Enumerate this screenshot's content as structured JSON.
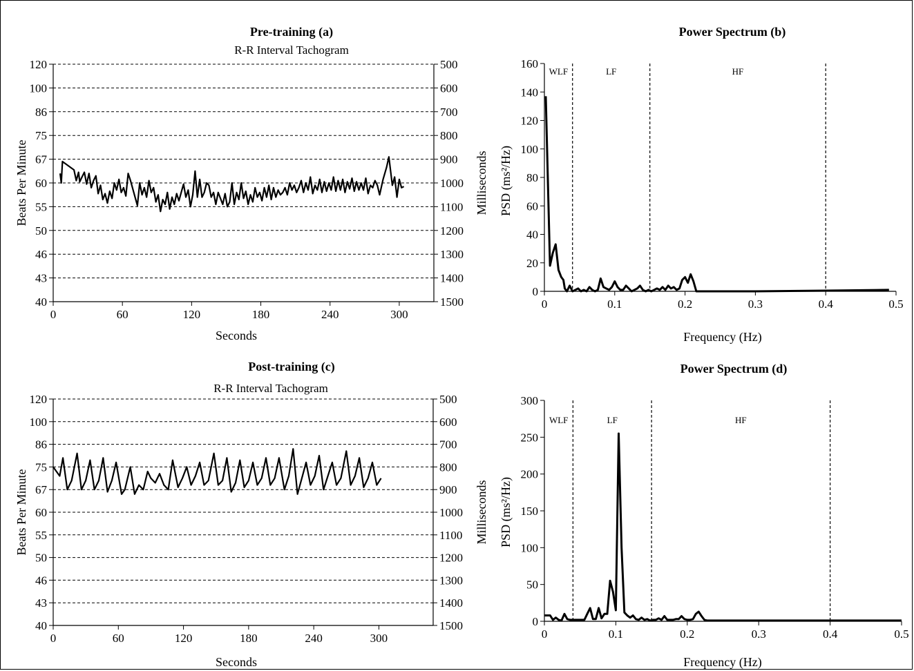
{
  "chart_data": [
    {
      "id": "a",
      "type": "line",
      "title": "Pre-training (a)",
      "subtitle": "R-R Interval Tachogram",
      "xlabel": "Seconds",
      "ylabel": "Beats Per Minute",
      "y2label": "Milliseconds",
      "x_ticks": [
        "0",
        "60",
        "120",
        "180",
        "240",
        "300"
      ],
      "y_ticks": [
        "120",
        "100",
        "86",
        "75",
        "67",
        "60",
        "55",
        "50",
        "46",
        "43",
        "40"
      ],
      "y2_ticks": [
        "500",
        "600",
        "700",
        "800",
        "900",
        "1000",
        "1100",
        "1200",
        "1300",
        "1400",
        "1500"
      ],
      "xlim": [
        0,
        330
      ],
      "ylim_ms": [
        500,
        1500
      ],
      "grid": "horizontal-dashed",
      "series": [
        {
          "x_seconds": [
            6,
            7,
            8,
            18,
            20,
            22,
            23,
            25,
            27,
            29,
            31,
            33,
            35,
            37,
            39,
            41,
            43,
            45,
            47,
            49,
            51,
            53,
            55,
            57,
            59,
            61,
            63,
            65,
            67,
            69,
            71,
            73,
            75,
            77,
            79,
            81,
            83,
            85,
            87,
            89,
            91,
            93,
            95,
            97,
            99,
            101,
            103,
            105,
            107,
            109,
            111,
            113,
            115,
            117,
            119,
            121,
            123,
            125,
            127,
            129,
            131,
            133,
            135,
            137,
            139,
            141,
            143,
            145,
            147,
            149,
            151,
            153,
            155,
            157,
            159,
            161,
            163,
            165,
            167,
            169,
            171,
            173,
            175,
            177,
            179,
            181,
            183,
            185,
            187,
            189,
            191,
            193,
            195,
            197,
            199,
            201,
            203,
            205,
            207,
            209,
            211,
            213,
            215,
            217,
            219,
            221,
            223,
            225,
            227,
            229,
            231,
            233,
            235,
            237,
            239,
            241,
            243,
            245,
            247,
            249,
            251,
            253,
            255,
            257,
            259,
            261,
            263,
            265,
            267,
            269,
            271,
            273,
            275,
            277,
            279,
            281,
            283,
            286,
            289,
            291,
            294,
            296,
            298,
            300,
            302,
            304
          ],
          "ms": [
            960,
            1000,
            910,
            945,
            990,
            955,
            995,
            975,
            955,
            1005,
            960,
            1020,
            990,
            970,
            1045,
            1010,
            1070,
            1045,
            1085,
            1035,
            1065,
            1000,
            1030,
            985,
            1040,
            1020,
            1055,
            960,
            990,
            1025,
            1060,
            1095,
            1000,
            1050,
            1020,
            1060,
            990,
            1040,
            1020,
            1080,
            1050,
            1120,
            1070,
            1090,
            1040,
            1110,
            1060,
            1090,
            1045,
            1075,
            1040,
            1005,
            1060,
            1030,
            1100,
            1050,
            950,
            1060,
            985,
            1060,
            1040,
            1000,
            1010,
            1060,
            1040,
            1090,
            1040,
            1065,
            1090,
            1045,
            1100,
            1080,
            1000,
            1090,
            1040,
            1070,
            1000,
            1065,
            1035,
            1090,
            1050,
            1080,
            1020,
            1060,
            1040,
            1075,
            1020,
            1060,
            1010,
            1070,
            1020,
            1060,
            1030,
            1050,
            1040,
            1020,
            1050,
            1000,
            1030,
            1010,
            1040,
            1020,
            990,
            1040,
            1000,
            1030,
            975,
            1045,
            1010,
            1030,
            985,
            1040,
            995,
            1035,
            1000,
            1030,
            975,
            1035,
            990,
            1030,
            985,
            1040,
            995,
            1025,
            980,
            1035,
            995,
            1030,
            1000,
            1030,
            980,
            1045,
            1010,
            1020,
            990,
            1010,
            1050,
            985,
            935,
            890,
            1010,
            975,
            1060,
            985,
            1020,
            1015
          ]
        }
      ]
    },
    {
      "id": "b",
      "type": "line",
      "title": "Power Spectrum (b)",
      "xlabel": "Frequency (Hz)",
      "ylabel": "PSD (ms²/Hz)",
      "x_ticks": [
        "0",
        "0.1",
        "0.2",
        "0.3",
        "0.4",
        "0.5"
      ],
      "y_ticks": [
        "0",
        "20",
        "40",
        "60",
        "80",
        "100",
        "120",
        "140",
        "160"
      ],
      "xlim": [
        0,
        0.5
      ],
      "ylim": [
        0,
        160
      ],
      "bands": [
        "WLF",
        "LF",
        "HF"
      ],
      "band_limits_hz": [
        0.04,
        0.15,
        0.4
      ],
      "series": [
        {
          "x": [
            0.002,
            0.008,
            0.012,
            0.016,
            0.02,
            0.024,
            0.027,
            0.029,
            0.032,
            0.036,
            0.04,
            0.044,
            0.048,
            0.052,
            0.056,
            0.06,
            0.064,
            0.068,
            0.072,
            0.076,
            0.08,
            0.084,
            0.088,
            0.092,
            0.096,
            0.1,
            0.104,
            0.108,
            0.112,
            0.116,
            0.12,
            0.124,
            0.128,
            0.132,
            0.136,
            0.14,
            0.144,
            0.148,
            0.152,
            0.156,
            0.16,
            0.164,
            0.168,
            0.172,
            0.176,
            0.18,
            0.184,
            0.188,
            0.192,
            0.196,
            0.2,
            0.204,
            0.208,
            0.212,
            0.216,
            0.3,
            0.4,
            0.49
          ],
          "y": [
            137,
            18,
            27,
            33,
            15,
            10,
            8,
            2,
            0,
            4,
            0,
            1,
            2,
            0,
            1,
            0,
            3,
            1,
            0,
            1,
            9,
            3,
            2,
            1,
            3,
            7,
            3,
            1,
            1,
            4,
            2,
            0,
            1,
            2,
            4,
            1,
            0,
            1,
            0,
            1,
            2,
            1,
            3,
            1,
            4,
            2,
            3,
            1,
            2,
            8,
            10,
            6,
            12,
            7,
            0,
            0,
            0.5,
            1
          ]
        }
      ]
    },
    {
      "id": "c",
      "type": "line",
      "title": "Post-training (c)",
      "subtitle": "R-R Interval Tachogram",
      "xlabel": "Seconds",
      "ylabel": "Beats Per Minute",
      "y2label": "Milliseconds",
      "x_ticks": [
        "0",
        "60",
        "120",
        "180",
        "240",
        "300"
      ],
      "y_ticks": [
        "120",
        "100",
        "86",
        "75",
        "67",
        "60",
        "55",
        "50",
        "46",
        "43",
        "40"
      ],
      "y2_ticks": [
        "500",
        "600",
        "700",
        "800",
        "900",
        "1000",
        "1100",
        "1200",
        "1300",
        "1400",
        "1500"
      ],
      "xlim": [
        0,
        350
      ],
      "ylim_ms": [
        500,
        1500
      ],
      "grid": "horizontal-dashed",
      "series": [
        {
          "x_seconds": [
            0,
            3,
            6,
            9,
            13,
            17,
            22,
            26,
            30,
            34,
            38,
            42,
            46,
            50,
            54,
            58,
            63,
            66,
            71,
            75,
            79,
            83,
            87,
            90,
            94,
            98,
            102,
            106,
            110,
            115,
            119,
            123,
            127,
            131,
            135,
            139,
            143,
            148,
            152,
            156,
            160,
            164,
            168,
            172,
            176,
            180,
            184,
            188,
            192,
            196,
            200,
            204,
            208,
            213,
            217,
            221,
            225,
            229,
            233,
            237,
            241,
            245,
            249,
            253,
            257,
            261,
            265,
            270,
            274,
            278,
            282,
            286,
            290,
            294,
            298,
            302
          ],
          "ms": [
            800,
            820,
            840,
            760,
            900,
            860,
            740,
            900,
            860,
            770,
            900,
            860,
            760,
            910,
            860,
            780,
            920,
            900,
            800,
            920,
            880,
            900,
            820,
            850,
            870,
            830,
            880,
            900,
            770,
            890,
            850,
            800,
            880,
            840,
            780,
            880,
            860,
            740,
            880,
            860,
            760,
            910,
            870,
            770,
            890,
            860,
            780,
            880,
            850,
            760,
            880,
            850,
            760,
            900,
            840,
            720,
            920,
            850,
            780,
            880,
            840,
            750,
            900,
            840,
            780,
            880,
            850,
            730,
            880,
            840,
            760,
            890,
            850,
            780,
            880,
            850
          ]
        }
      ]
    },
    {
      "id": "d",
      "type": "line",
      "title": "Power Spectrum (d)",
      "xlabel": "Frequency (Hz)",
      "ylabel": "PSD (ms²/Hz)",
      "x_ticks": [
        "0",
        "0.1",
        "0.2",
        "0.3",
        "0.4",
        "0.5"
      ],
      "y_ticks": [
        "0",
        "50",
        "100",
        "150",
        "200",
        "250",
        "300"
      ],
      "xlim": [
        0,
        0.5
      ],
      "ylim": [
        0,
        300
      ],
      "bands": [
        "WLF",
        "LF",
        "HF"
      ],
      "band_limits_hz": [
        0.04,
        0.15,
        0.4
      ],
      "series": [
        {
          "x": [
            0,
            0.004,
            0.008,
            0.012,
            0.016,
            0.02,
            0.024,
            0.028,
            0.032,
            0.036,
            0.04,
            0.044,
            0.048,
            0.052,
            0.056,
            0.06,
            0.064,
            0.068,
            0.072,
            0.076,
            0.08,
            0.084,
            0.088,
            0.092,
            0.096,
            0.1,
            0.104,
            0.108,
            0.112,
            0.116,
            0.12,
            0.124,
            0.128,
            0.132,
            0.136,
            0.14,
            0.144,
            0.148,
            0.152,
            0.156,
            0.16,
            0.164,
            0.168,
            0.172,
            0.176,
            0.18,
            0.184,
            0.188,
            0.192,
            0.196,
            0.2,
            0.204,
            0.208,
            0.212,
            0.216,
            0.22,
            0.224,
            0.228,
            0.232,
            0.3,
            0.4,
            0.5
          ],
          "y": [
            8,
            8,
            8,
            2,
            5,
            2,
            1,
            10,
            3,
            2,
            2,
            2,
            2,
            2,
            2,
            10,
            18,
            3,
            3,
            18,
            4,
            10,
            10,
            55,
            40,
            15,
            255,
            100,
            12,
            8,
            5,
            8,
            3,
            2,
            5,
            2,
            3,
            1,
            2,
            2,
            4,
            2,
            7,
            2,
            2,
            2,
            3,
            3,
            7,
            3,
            2,
            2,
            3,
            10,
            13,
            7,
            2,
            1,
            1,
            1,
            1,
            1
          ]
        }
      ]
    }
  ]
}
